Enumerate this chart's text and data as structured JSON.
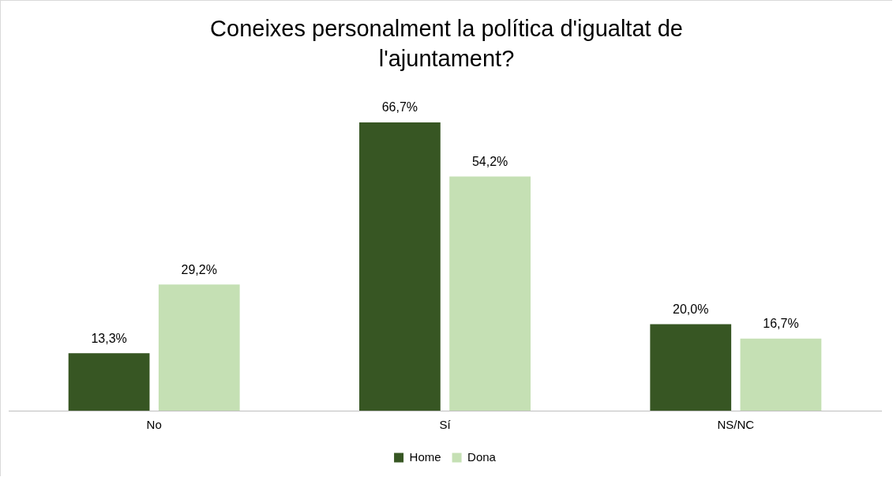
{
  "chart_data": {
    "type": "bar",
    "title": "Coneixes personalment la política d'igualtat de l'ajuntament?",
    "categories": [
      "No",
      "Sí",
      "NS/NC"
    ],
    "series": [
      {
        "name": "Home",
        "color": "#375623",
        "values": [
          13.3,
          66.7,
          20.0
        ],
        "value_labels": [
          "13,3%",
          "66,7%",
          "20,0%"
        ]
      },
      {
        "name": "Dona",
        "color": "#c5e0b4",
        "values": [
          29.2,
          54.2,
          16.7
        ],
        "value_labels": [
          "29,2%",
          "54,2%",
          "16,7%"
        ]
      }
    ],
    "grid": false,
    "legend": "bottom",
    "tick_labels": "x"
  }
}
